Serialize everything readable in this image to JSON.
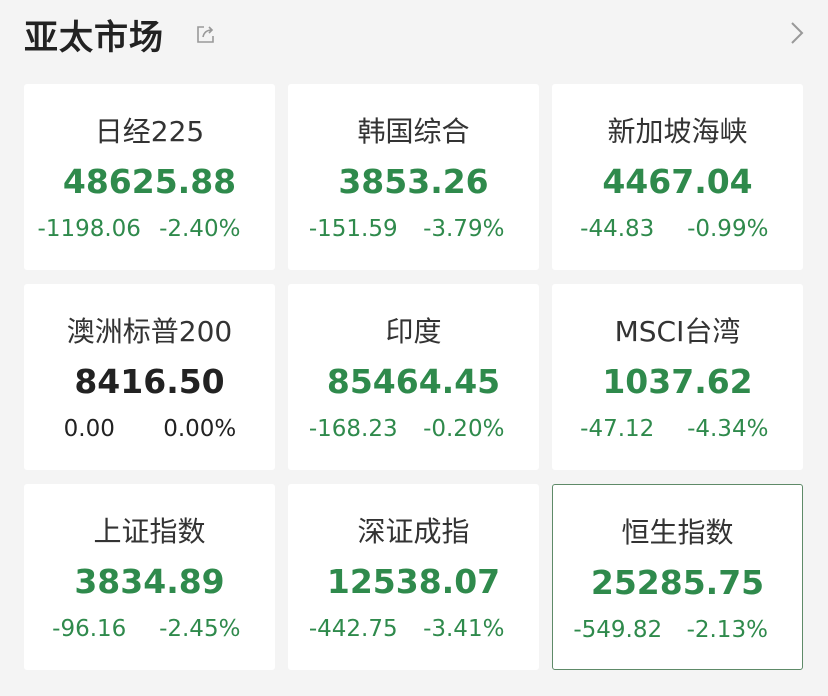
{
  "header": {
    "title": "亚太市场",
    "share_icon": "share-icon",
    "more_icon": "chevron-right-icon"
  },
  "colors": {
    "down": "#2f8a4c",
    "flat": "#222222",
    "background": "#f4f4f4",
    "selected_border": "#5e8a68"
  },
  "indices": [
    {
      "name": "日经225",
      "value": "48625.88",
      "change": "-1198.06",
      "pct": "-2.40%",
      "trend": "down"
    },
    {
      "name": "韩国综合",
      "value": "3853.26",
      "change": "-151.59",
      "pct": "-3.79%",
      "trend": "down"
    },
    {
      "name": "新加坡海峡",
      "value": "4467.04",
      "change": "-44.83",
      "pct": "-0.99%",
      "trend": "down"
    },
    {
      "name": "澳洲标普200",
      "value": "8416.50",
      "change": "0.00",
      "pct": "0.00%",
      "trend": "flat"
    },
    {
      "name": "印度",
      "value": "85464.45",
      "change": "-168.23",
      "pct": "-0.20%",
      "trend": "down"
    },
    {
      "name": "MSCI台湾",
      "value": "1037.62",
      "change": "-47.12",
      "pct": "-4.34%",
      "trend": "down"
    },
    {
      "name": "上证指数",
      "value": "3834.89",
      "change": "-96.16",
      "pct": "-2.45%",
      "trend": "down"
    },
    {
      "name": "深证成指",
      "value": "12538.07",
      "change": "-442.75",
      "pct": "-3.41%",
      "trend": "down"
    },
    {
      "name": "恒生指数",
      "value": "25285.75",
      "change": "-549.82",
      "pct": "-2.13%",
      "trend": "down",
      "selected": true
    }
  ]
}
